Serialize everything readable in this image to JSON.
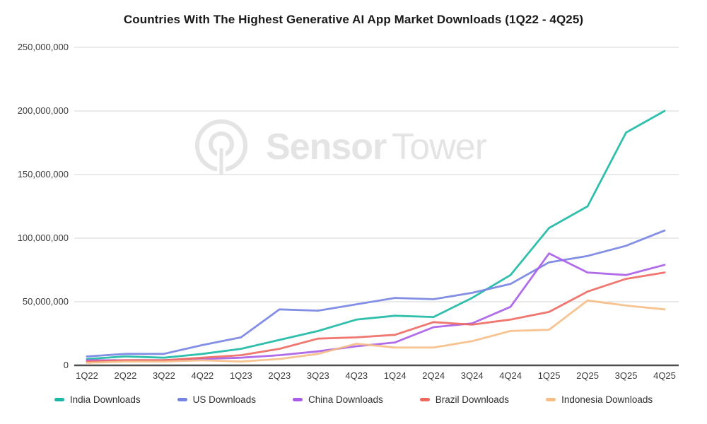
{
  "title": "Countries With The Highest Generative AI App Market Downloads (1Q22 - 4Q25)",
  "watermark": {
    "text_bold": "Sensor",
    "text_light": "Tower"
  },
  "chart_data": {
    "type": "line",
    "title": "Countries With The Highest Generative AI App Market Downloads (1Q22 - 4Q25)",
    "categories": [
      "1Q22",
      "2Q22",
      "3Q22",
      "4Q22",
      "1Q23",
      "2Q23",
      "3Q23",
      "4Q23",
      "1Q24",
      "2Q24",
      "3Q24",
      "4Q24",
      "1Q25",
      "2Q25",
      "3Q25",
      "4Q25"
    ],
    "series": [
      {
        "name": "India Downloads",
        "color": "#1ab8a4",
        "values": [
          5000000,
          7000000,
          6000000,
          9000000,
          13000000,
          20000000,
          27000000,
          36000000,
          39000000,
          38000000,
          53000000,
          71000000,
          108000000,
          125000000,
          183000000,
          200000000
        ]
      },
      {
        "name": "US Downloads",
        "color": "#7583e2",
        "values": [
          7000000,
          9000000,
          9000000,
          16000000,
          22000000,
          44000000,
          43000000,
          48000000,
          53000000,
          52000000,
          57000000,
          64000000,
          81000000,
          86000000,
          94000000,
          106000000
        ]
      },
      {
        "name": "China Downloads",
        "color": "#a95ce8",
        "values": [
          4000000,
          4000000,
          4000000,
          5000000,
          6000000,
          8000000,
          11000000,
          15000000,
          18000000,
          30000000,
          33000000,
          46000000,
          88000000,
          73000000,
          71000000,
          79000000
        ]
      },
      {
        "name": "Brazil Downloads",
        "color": "#ed685f",
        "values": [
          3000000,
          4000000,
          4000000,
          6000000,
          8000000,
          13000000,
          21000000,
          22000000,
          24000000,
          34000000,
          32000000,
          36000000,
          42000000,
          58000000,
          68000000,
          73000000
        ]
      },
      {
        "name": "Indonesia Downloads",
        "color": "#f6bd85",
        "values": [
          2000000,
          3000000,
          3000000,
          4000000,
          3000000,
          5000000,
          9000000,
          17000000,
          14000000,
          14000000,
          19000000,
          27000000,
          28000000,
          51000000,
          47000000,
          44000000
        ]
      }
    ],
    "xlabel": "",
    "ylabel": "",
    "ylim": [
      0,
      250000000
    ],
    "y_ticks": [
      0,
      50000000,
      100000000,
      150000000,
      200000000,
      250000000
    ],
    "y_tick_labels": [
      "0",
      "50,000,000",
      "100,000,000",
      "150,000,000",
      "200,000,000",
      "250,000,000"
    ],
    "grid": true,
    "legend_position": "bottom",
    "colors": {
      "gridline": "#e4e4e4",
      "zero_axis": "#4e4e4e",
      "tick_text": "#3c3c3c",
      "watermark": "#e4e4e4"
    }
  }
}
